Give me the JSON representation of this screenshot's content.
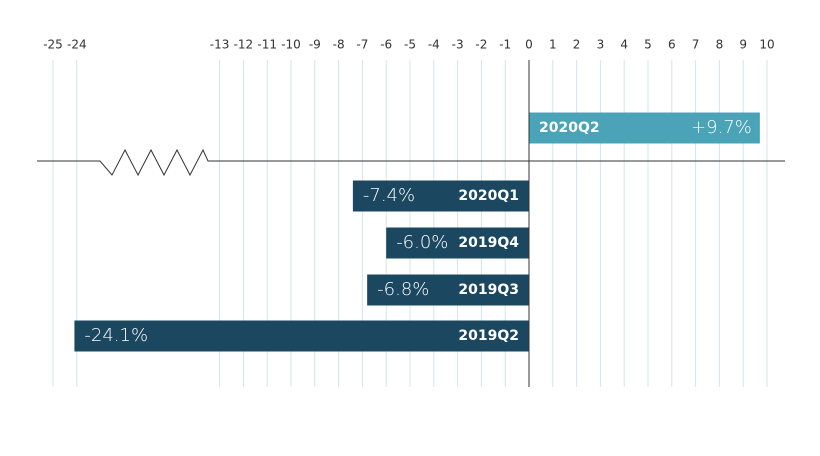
{
  "chart_data": {
    "type": "bar",
    "orientation": "horizontal",
    "axis_break": true,
    "categories": [
      "2020Q2",
      "2020Q1",
      "2019Q4",
      "2019Q3",
      "2019Q2"
    ],
    "values": [
      9.7,
      -7.4,
      -6.0,
      -6.8,
      -24.1
    ],
    "value_labels": [
      "+9.7%",
      "-7.4%",
      "-6.0%",
      "-6.8%",
      "-24.1%"
    ],
    "colors": [
      "#4aa3b7",
      "#1c4761",
      "#1c4761",
      "#1c4761",
      "#1c4761"
    ],
    "xlim": [
      -25,
      10
    ],
    "xticks": [
      -25,
      -24,
      -13,
      -12,
      -11,
      -10,
      -9,
      -8,
      -7,
      -6,
      -5,
      -4,
      -3,
      -2,
      -1,
      0,
      1,
      2,
      3,
      4,
      5,
      6,
      7,
      8,
      9,
      10
    ],
    "grid": true
  }
}
